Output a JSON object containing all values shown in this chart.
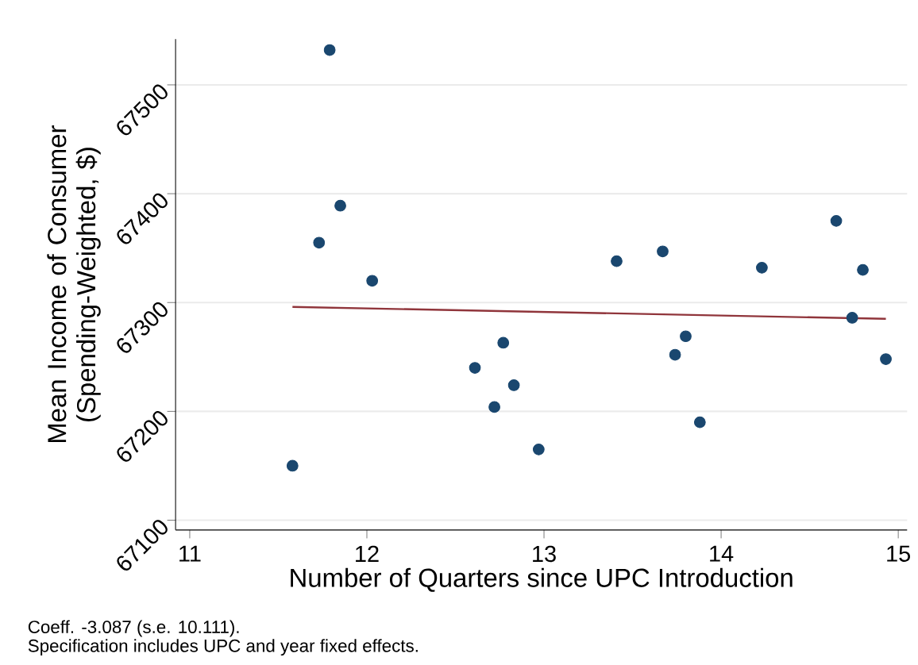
{
  "chart_data": {
    "type": "scatter",
    "xlabel": "Number of Quarters since UPC Introduction",
    "ylabel": "Mean Income of Consumer (Spending-Weighted, $)",
    "annotations": [
      "Coeff. -3.087 (s.e. 10.111).",
      "Specification includes UPC and year fixed effects."
    ],
    "xlim": [
      10.92,
      15.05
    ],
    "ylim": [
      67091,
      67542
    ],
    "xticks": [
      11,
      12,
      13,
      14,
      15
    ],
    "yticks": [
      67100,
      67200,
      67300,
      67400,
      67500
    ],
    "grid": "y",
    "marker": "circle",
    "series": [
      {
        "color": "#1a476f",
        "x": [
          11.58,
          11.79,
          11.73,
          11.85,
          12.03,
          12.61,
          12.72,
          12.77,
          12.83,
          12.97,
          13.41,
          13.67,
          13.74,
          13.8,
          13.88,
          14.23,
          14.65,
          14.74,
          14.8,
          14.93
        ],
        "values": [
          67150,
          67532,
          67355,
          67389,
          67320,
          67240,
          67204,
          67263,
          67224,
          67165,
          67338,
          67347,
          67252,
          67269,
          67190,
          67332,
          67375,
          67286,
          67330,
          67248
        ]
      },
      {
        "type": "line",
        "marker": "none",
        "color": "#90353b",
        "x": [
          11.58,
          14.93
        ],
        "values": [
          67296,
          67285
        ]
      }
    ]
  }
}
